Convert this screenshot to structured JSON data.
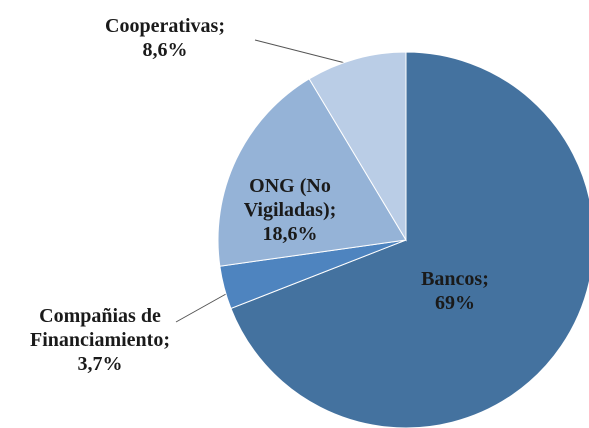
{
  "chart_data": {
    "type": "pie",
    "categories": [
      "Bancos;",
      "Compañias de Financiamiento;",
      "ONG (No Vigiladas);",
      "Cooperativas;"
    ],
    "values": [
      69,
      3.7,
      18.6,
      8.6
    ],
    "value_labels": [
      "69%",
      "3,7%",
      "18,6%",
      "8,6%"
    ],
    "colors": [
      "#44729f",
      "#4e84bf",
      "#95b3d7",
      "#bacde6"
    ]
  }
}
